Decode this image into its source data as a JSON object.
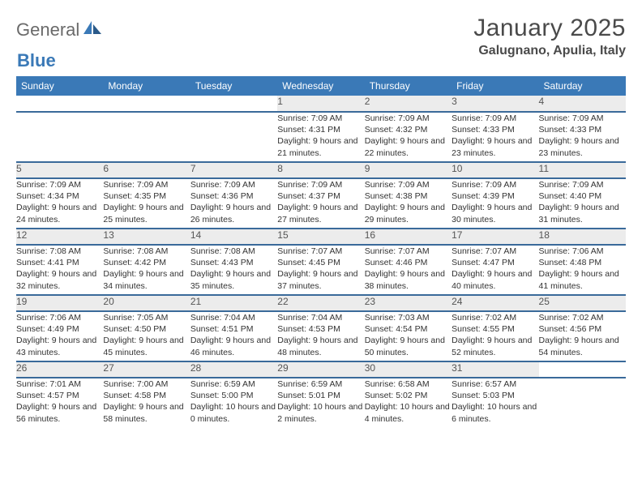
{
  "logo": {
    "text1": "General",
    "text2": "Blue"
  },
  "title": "January 2025",
  "location": "Galugnano, Apulia, Italy",
  "colors": {
    "header_bg": "#3a79b7",
    "row_divider": "#3a6a9a",
    "daynum_bg": "#ececec",
    "page_bg": "#ffffff",
    "text": "#333333"
  },
  "day_headers": [
    "Sunday",
    "Monday",
    "Tuesday",
    "Wednesday",
    "Thursday",
    "Friday",
    "Saturday"
  ],
  "weeks": [
    [
      null,
      null,
      null,
      {
        "n": "1",
        "sr": "7:09 AM",
        "ss": "4:31 PM",
        "dl": "9 hours and 21 minutes."
      },
      {
        "n": "2",
        "sr": "7:09 AM",
        "ss": "4:32 PM",
        "dl": "9 hours and 22 minutes."
      },
      {
        "n": "3",
        "sr": "7:09 AM",
        "ss": "4:33 PM",
        "dl": "9 hours and 23 minutes."
      },
      {
        "n": "4",
        "sr": "7:09 AM",
        "ss": "4:33 PM",
        "dl": "9 hours and 23 minutes."
      }
    ],
    [
      {
        "n": "5",
        "sr": "7:09 AM",
        "ss": "4:34 PM",
        "dl": "9 hours and 24 minutes."
      },
      {
        "n": "6",
        "sr": "7:09 AM",
        "ss": "4:35 PM",
        "dl": "9 hours and 25 minutes."
      },
      {
        "n": "7",
        "sr": "7:09 AM",
        "ss": "4:36 PM",
        "dl": "9 hours and 26 minutes."
      },
      {
        "n": "8",
        "sr": "7:09 AM",
        "ss": "4:37 PM",
        "dl": "9 hours and 27 minutes."
      },
      {
        "n": "9",
        "sr": "7:09 AM",
        "ss": "4:38 PM",
        "dl": "9 hours and 29 minutes."
      },
      {
        "n": "10",
        "sr": "7:09 AM",
        "ss": "4:39 PM",
        "dl": "9 hours and 30 minutes."
      },
      {
        "n": "11",
        "sr": "7:09 AM",
        "ss": "4:40 PM",
        "dl": "9 hours and 31 minutes."
      }
    ],
    [
      {
        "n": "12",
        "sr": "7:08 AM",
        "ss": "4:41 PM",
        "dl": "9 hours and 32 minutes."
      },
      {
        "n": "13",
        "sr": "7:08 AM",
        "ss": "4:42 PM",
        "dl": "9 hours and 34 minutes."
      },
      {
        "n": "14",
        "sr": "7:08 AM",
        "ss": "4:43 PM",
        "dl": "9 hours and 35 minutes."
      },
      {
        "n": "15",
        "sr": "7:07 AM",
        "ss": "4:45 PM",
        "dl": "9 hours and 37 minutes."
      },
      {
        "n": "16",
        "sr": "7:07 AM",
        "ss": "4:46 PM",
        "dl": "9 hours and 38 minutes."
      },
      {
        "n": "17",
        "sr": "7:07 AM",
        "ss": "4:47 PM",
        "dl": "9 hours and 40 minutes."
      },
      {
        "n": "18",
        "sr": "7:06 AM",
        "ss": "4:48 PM",
        "dl": "9 hours and 41 minutes."
      }
    ],
    [
      {
        "n": "19",
        "sr": "7:06 AM",
        "ss": "4:49 PM",
        "dl": "9 hours and 43 minutes."
      },
      {
        "n": "20",
        "sr": "7:05 AM",
        "ss": "4:50 PM",
        "dl": "9 hours and 45 minutes."
      },
      {
        "n": "21",
        "sr": "7:04 AM",
        "ss": "4:51 PM",
        "dl": "9 hours and 46 minutes."
      },
      {
        "n": "22",
        "sr": "7:04 AM",
        "ss": "4:53 PM",
        "dl": "9 hours and 48 minutes."
      },
      {
        "n": "23",
        "sr": "7:03 AM",
        "ss": "4:54 PM",
        "dl": "9 hours and 50 minutes."
      },
      {
        "n": "24",
        "sr": "7:02 AM",
        "ss": "4:55 PM",
        "dl": "9 hours and 52 minutes."
      },
      {
        "n": "25",
        "sr": "7:02 AM",
        "ss": "4:56 PM",
        "dl": "9 hours and 54 minutes."
      }
    ],
    [
      {
        "n": "26",
        "sr": "7:01 AM",
        "ss": "4:57 PM",
        "dl": "9 hours and 56 minutes."
      },
      {
        "n": "27",
        "sr": "7:00 AM",
        "ss": "4:58 PM",
        "dl": "9 hours and 58 minutes."
      },
      {
        "n": "28",
        "sr": "6:59 AM",
        "ss": "5:00 PM",
        "dl": "10 hours and 0 minutes."
      },
      {
        "n": "29",
        "sr": "6:59 AM",
        "ss": "5:01 PM",
        "dl": "10 hours and 2 minutes."
      },
      {
        "n": "30",
        "sr": "6:58 AM",
        "ss": "5:02 PM",
        "dl": "10 hours and 4 minutes."
      },
      {
        "n": "31",
        "sr": "6:57 AM",
        "ss": "5:03 PM",
        "dl": "10 hours and 6 minutes."
      },
      null
    ]
  ],
  "labels": {
    "sunrise": "Sunrise: ",
    "sunset": "Sunset: ",
    "daylight": "Daylight: "
  }
}
